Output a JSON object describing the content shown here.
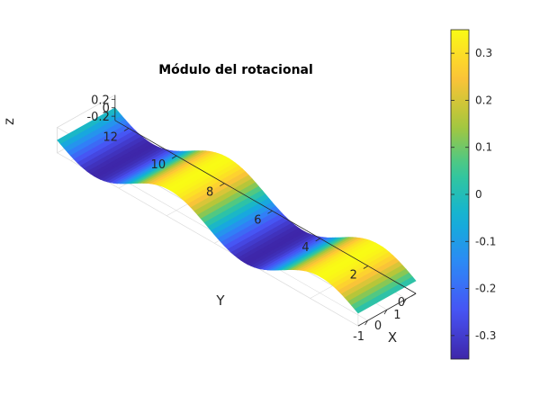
{
  "chart_data": [
    {
      "type": "surface",
      "title": "Módulo del rotacional",
      "xlabel": "X",
      "ylabel": "Y",
      "zlabel": "z",
      "x_range": [
        -1.5,
        1.5
      ],
      "y_range": [
        0,
        12.566
      ],
      "z_range": [
        -0.3,
        0.3
      ],
      "x_ticks": [
        "-1",
        "0",
        "1"
      ],
      "y_ticks": [
        "0",
        "2",
        "4",
        "6",
        "8",
        "10",
        "12"
      ],
      "z_ticks": [
        "-0.2",
        "0",
        "0.2"
      ],
      "function": "z = 0.35 * sin(y)",
      "amplitude": 0.35,
      "grid": true,
      "colormap": "parula",
      "colorbar": {
        "range": [
          -0.35,
          0.35
        ],
        "ticks": [
          "-0.3",
          "-0.2",
          "-0.1",
          "0",
          "0.1",
          "0.2",
          "0.3"
        ]
      }
    }
  ]
}
